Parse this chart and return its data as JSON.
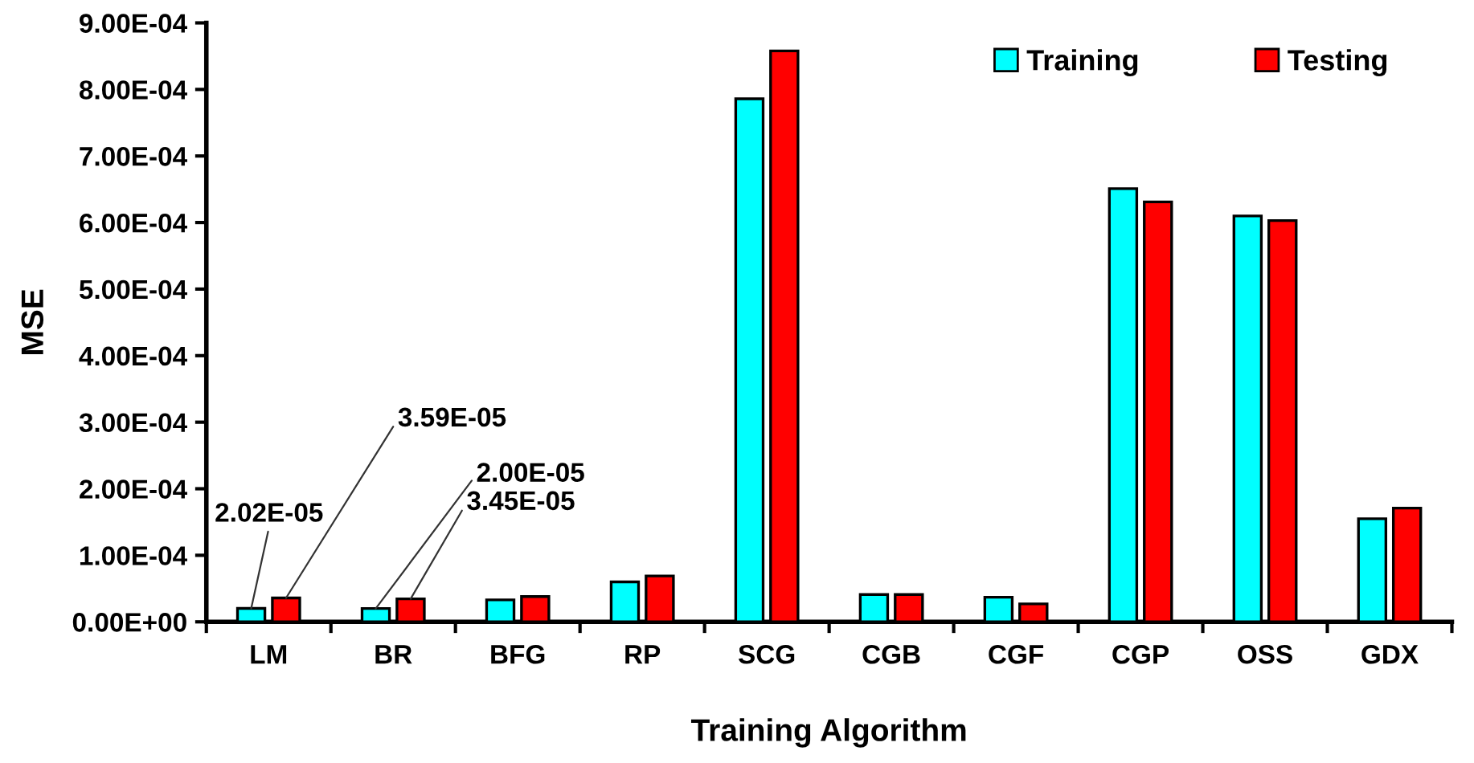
{
  "chart_data": {
    "type": "bar",
    "xlabel": "Training Algorithm",
    "ylabel": "MSE",
    "categories": [
      "LM",
      "BR",
      "BFG",
      "RP",
      "SCG",
      "CGB",
      "CGF",
      "CGP",
      "OSS",
      "GDX"
    ],
    "series": [
      {
        "name": "Training",
        "color": "#00ffff",
        "values": [
          2.02e-05,
          2e-05,
          3.3e-05,
          6e-05,
          0.000786,
          4.1e-05,
          3.7e-05,
          0.000651,
          0.00061,
          0.000155
        ],
        "value_labels": [
          "2.02E-05",
          "2.00E-05",
          null,
          null,
          null,
          null,
          null,
          null,
          null,
          null
        ]
      },
      {
        "name": "Testing",
        "color": "#ff0000",
        "values": [
          3.59e-05,
          3.45e-05,
          3.8e-05,
          6.9e-05,
          0.000858,
          4.1e-05,
          2.7e-05,
          0.000631,
          0.000603,
          0.000171
        ],
        "value_labels": [
          "3.59E-05",
          "3.45E-05",
          null,
          null,
          null,
          null,
          null,
          null,
          null,
          null
        ]
      }
    ],
    "ylim": [
      0,
      0.0009
    ],
    "yticks": [
      {
        "value": 0,
        "label": "0.00E+00"
      },
      {
        "value": 0.0001,
        "label": "1.00E-04"
      },
      {
        "value": 0.0002,
        "label": "2.00E-04"
      },
      {
        "value": 0.0003,
        "label": "3.00E-04"
      },
      {
        "value": 0.0004,
        "label": "4.00E-04"
      },
      {
        "value": 0.0005,
        "label": "5.00E-04"
      },
      {
        "value": 0.0006,
        "label": "6.00E-04"
      },
      {
        "value": 0.0007,
        "label": "7.00E-04"
      },
      {
        "value": 0.0008,
        "label": "8.00E-04"
      },
      {
        "value": 0.0009,
        "label": "9.00E-04"
      }
    ],
    "grid": false,
    "legend": "top right"
  }
}
